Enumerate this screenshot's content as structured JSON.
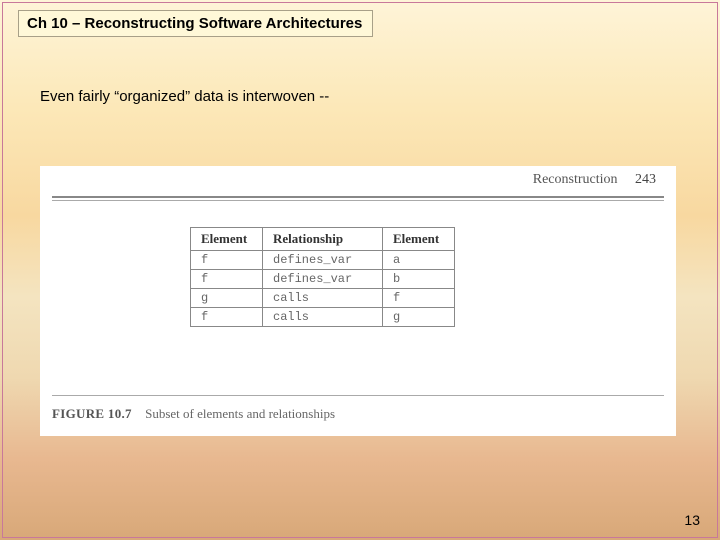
{
  "slide": {
    "title": "Ch 10 – Reconstructing Software Architectures",
    "subtitle": "Even fairly “organized” data is interwoven --",
    "page_number": "13"
  },
  "figure": {
    "header_text": "Reconstruction",
    "header_page": "243",
    "caption_label": "FIGURE 10.7",
    "caption_text": "Subset of elements and relationships",
    "table": {
      "columns": [
        "Element",
        "Relationship",
        "Element"
      ],
      "rows": [
        [
          "f",
          "defines_var",
          "a"
        ],
        [
          "f",
          "defines_var",
          "b"
        ],
        [
          "g",
          "calls",
          "f"
        ],
        [
          "f",
          "calls",
          "g"
        ]
      ]
    }
  },
  "style": {
    "title_bg": "#fff8d8",
    "title_border": "#a8a088",
    "outer_border": "#c8789a",
    "panel_bg": "#ffffff"
  }
}
